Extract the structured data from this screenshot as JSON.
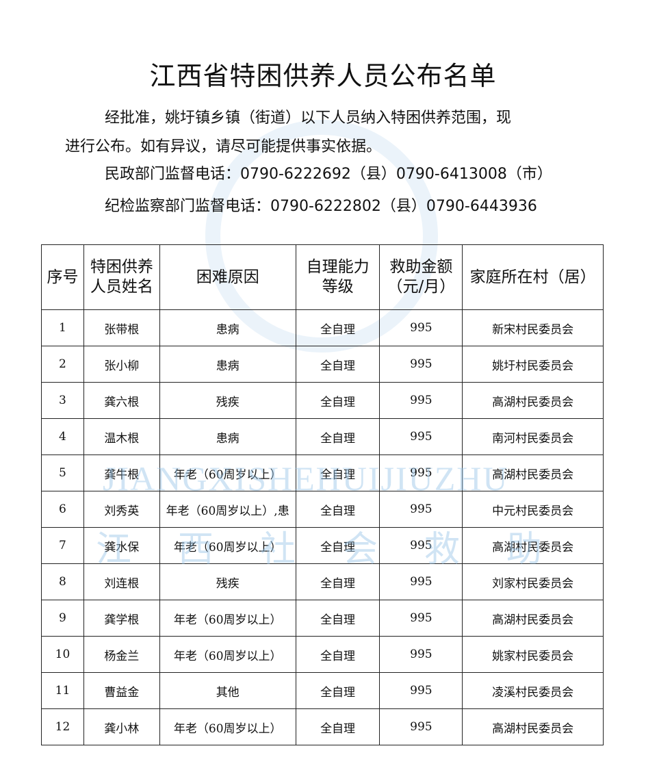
{
  "title": "江西省特困供养人员公布名单",
  "intro": {
    "line1": "经批准，姚圩镇乡镇（街道）以下人员纳入特困供养范围，现",
    "line2": "进行公布。如有异议，请尽可能提供事实依据。",
    "line3": "民政部门监督电话：0790-6222692（县）0790-6413008（市）",
    "line4": "纪检监察部门监督电话：0790-6222802（县）0790-6443936"
  },
  "watermark": {
    "latin": "JIANGXISHEHUIJIUZHU",
    "chinese": "江西社会救助"
  },
  "table": {
    "headers": [
      "序号",
      "特困供养人员姓名",
      "困难原因",
      "自理能力等级",
      "救助金额（元/月）",
      "家庭所在村（居）"
    ],
    "rows": [
      [
        "1",
        "张带根",
        "患病",
        "全自理",
        "995",
        "新宋村民委员会"
      ],
      [
        "2",
        "张小柳",
        "患病",
        "全自理",
        "995",
        "姚圩村民委员会"
      ],
      [
        "3",
        "龚六根",
        "残疾",
        "全自理",
        "995",
        "高湖村民委员会"
      ],
      [
        "4",
        "温木根",
        "患病",
        "全自理",
        "995",
        "南河村民委员会"
      ],
      [
        "5",
        "龚牛根",
        "年老（60周岁以上）",
        "全自理",
        "995",
        "高湖村民委员会"
      ],
      [
        "6",
        "刘秀英",
        "年老（60周岁以上）,患",
        "全自理",
        "995",
        "中元村民委员会"
      ],
      [
        "7",
        "龚水保",
        "年老（60周岁以上）",
        "全自理",
        "995",
        "高湖村民委员会"
      ],
      [
        "8",
        "刘连根",
        "残疾",
        "全自理",
        "995",
        "刘家村民委员会"
      ],
      [
        "9",
        "龚学根",
        "年老（60周岁以上）",
        "全自理",
        "995",
        "高湖村民委员会"
      ],
      [
        "10",
        "杨金兰",
        "年老（60周岁以上）",
        "全自理",
        "995",
        "姚家村民委员会"
      ],
      [
        "11",
        "曹益金",
        "其他",
        "全自理",
        "995",
        "凌溪村民委员会"
      ],
      [
        "12",
        "龚小林",
        "年老（60周岁以上）",
        "全自理",
        "995",
        "高湖村民委员会"
      ]
    ]
  }
}
